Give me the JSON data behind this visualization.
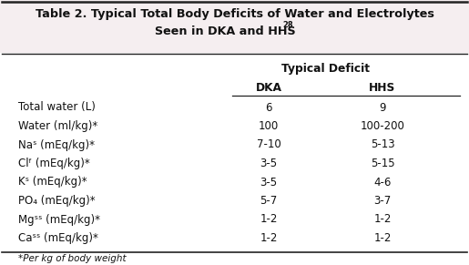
{
  "title_line1": "Table 2. Typical Total Body Deficits of Water and Electrolytes",
  "title_line2": "Seen in DKA and HHS",
  "title_superscript": "28",
  "header_group": "Typical Deficit",
  "col_headers": [
    "DKA",
    "HHS"
  ],
  "row_labels": [
    "Total water (L)",
    "Water (ml/kg)*",
    "Naˢ (mEq/kg)*",
    "Clᶠ (mEq/kg)*",
    "Kˢ (mEq/kg)*",
    "PO₄ (mEq/kg)*",
    "Mgˢˢ (mEq/kg)*",
    "Caˢˢ (mEq/kg)*"
  ],
  "dka_values": [
    "6",
    "100",
    "7-10",
    "3-5",
    "3-5",
    "5-7",
    "1-2",
    "1-2"
  ],
  "hhs_values": [
    "9",
    "100-200",
    "5-13",
    "5-15",
    "4-6",
    "3-7",
    "1-2",
    "1-2"
  ],
  "footnote": "*Per kg of body weight",
  "bg_title": "#f5eef0",
  "bg_body": "#ffffff",
  "border_color": "#222222",
  "text_color": "#111111",
  "title_fontsize": 9.2,
  "body_fontsize": 8.5,
  "header_fontsize": 8.8,
  "footnote_fontsize": 7.5,
  "fig_width": 5.15,
  "fig_height": 2.91,
  "dpi": 100
}
